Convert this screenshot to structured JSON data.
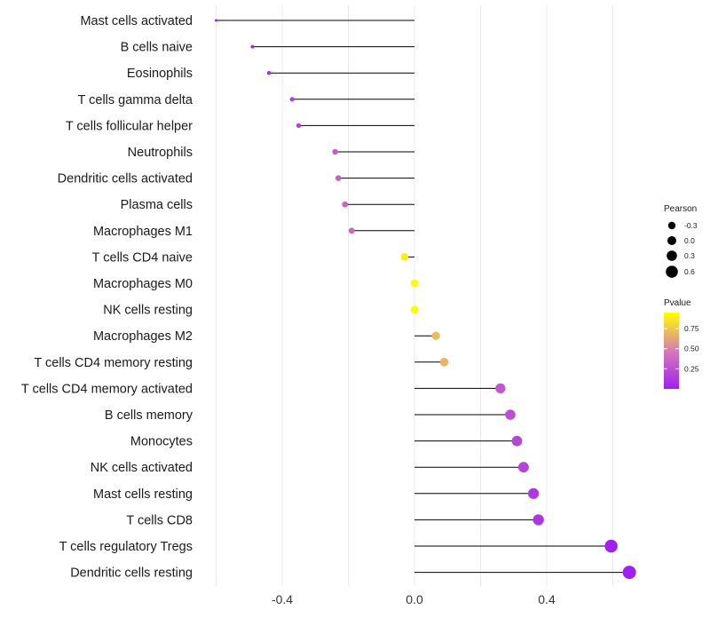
{
  "chart_data": {
    "type": "lollipop",
    "categories": [
      "Mast cells activated",
      "B cells naive",
      "Eosinophils",
      "T cells gamma delta",
      "T cells follicular helper",
      "Neutrophils",
      "Dendritic cells activated",
      "Plasma cells",
      "Macrophages M1",
      "T cells CD4 naive",
      "Macrophages M0",
      "NK cells resting",
      "Macrophages M2",
      "T cells CD4 memory resting",
      "T cells CD4 memory activated",
      "B cells memory",
      "Monocytes",
      "NK cells activated",
      "Mast cells resting",
      "T cells CD8",
      "T cells regulatory  Tregs",
      "Dendritic cells resting"
    ],
    "values": [
      -0.6,
      -0.49,
      -0.44,
      -0.37,
      -0.35,
      -0.24,
      -0.23,
      -0.21,
      -0.19,
      -0.03,
      0.0,
      0.0,
      0.065,
      0.09,
      0.26,
      0.29,
      0.31,
      0.33,
      0.36,
      0.375,
      0.595,
      0.65
    ],
    "pvalues": [
      0.01,
      0.05,
      0.08,
      0.15,
      0.18,
      0.33,
      0.34,
      0.37,
      0.4,
      0.93,
      0.99,
      0.99,
      0.75,
      0.72,
      0.3,
      0.25,
      0.21,
      0.19,
      0.13,
      0.12,
      0.01,
      0.0
    ],
    "xlim": [
      -0.6,
      0.65
    ],
    "x_ticks": [
      -0.4,
      0.0,
      0.4
    ],
    "x_tick_labels": [
      "-0.4",
      "0.0",
      "0.4"
    ],
    "grid": true,
    "size_legend": {
      "title": "Pearson",
      "values": [
        -0.3,
        0.0,
        0.3,
        0.6
      ],
      "labels": [
        "-0.3",
        "0.0",
        "0.3",
        "0.6"
      ]
    },
    "color_legend": {
      "title": "Pvalue",
      "ticks": [
        0.25,
        0.5,
        0.75
      ],
      "tick_labels": [
        "0.25",
        "0.50",
        "0.75"
      ],
      "low_color": "#a020f0",
      "mid_color": "#d67bb5",
      "high_color": "#ffff00"
    },
    "stem_color": "#000000",
    "grid_color": "#ebebeb"
  }
}
